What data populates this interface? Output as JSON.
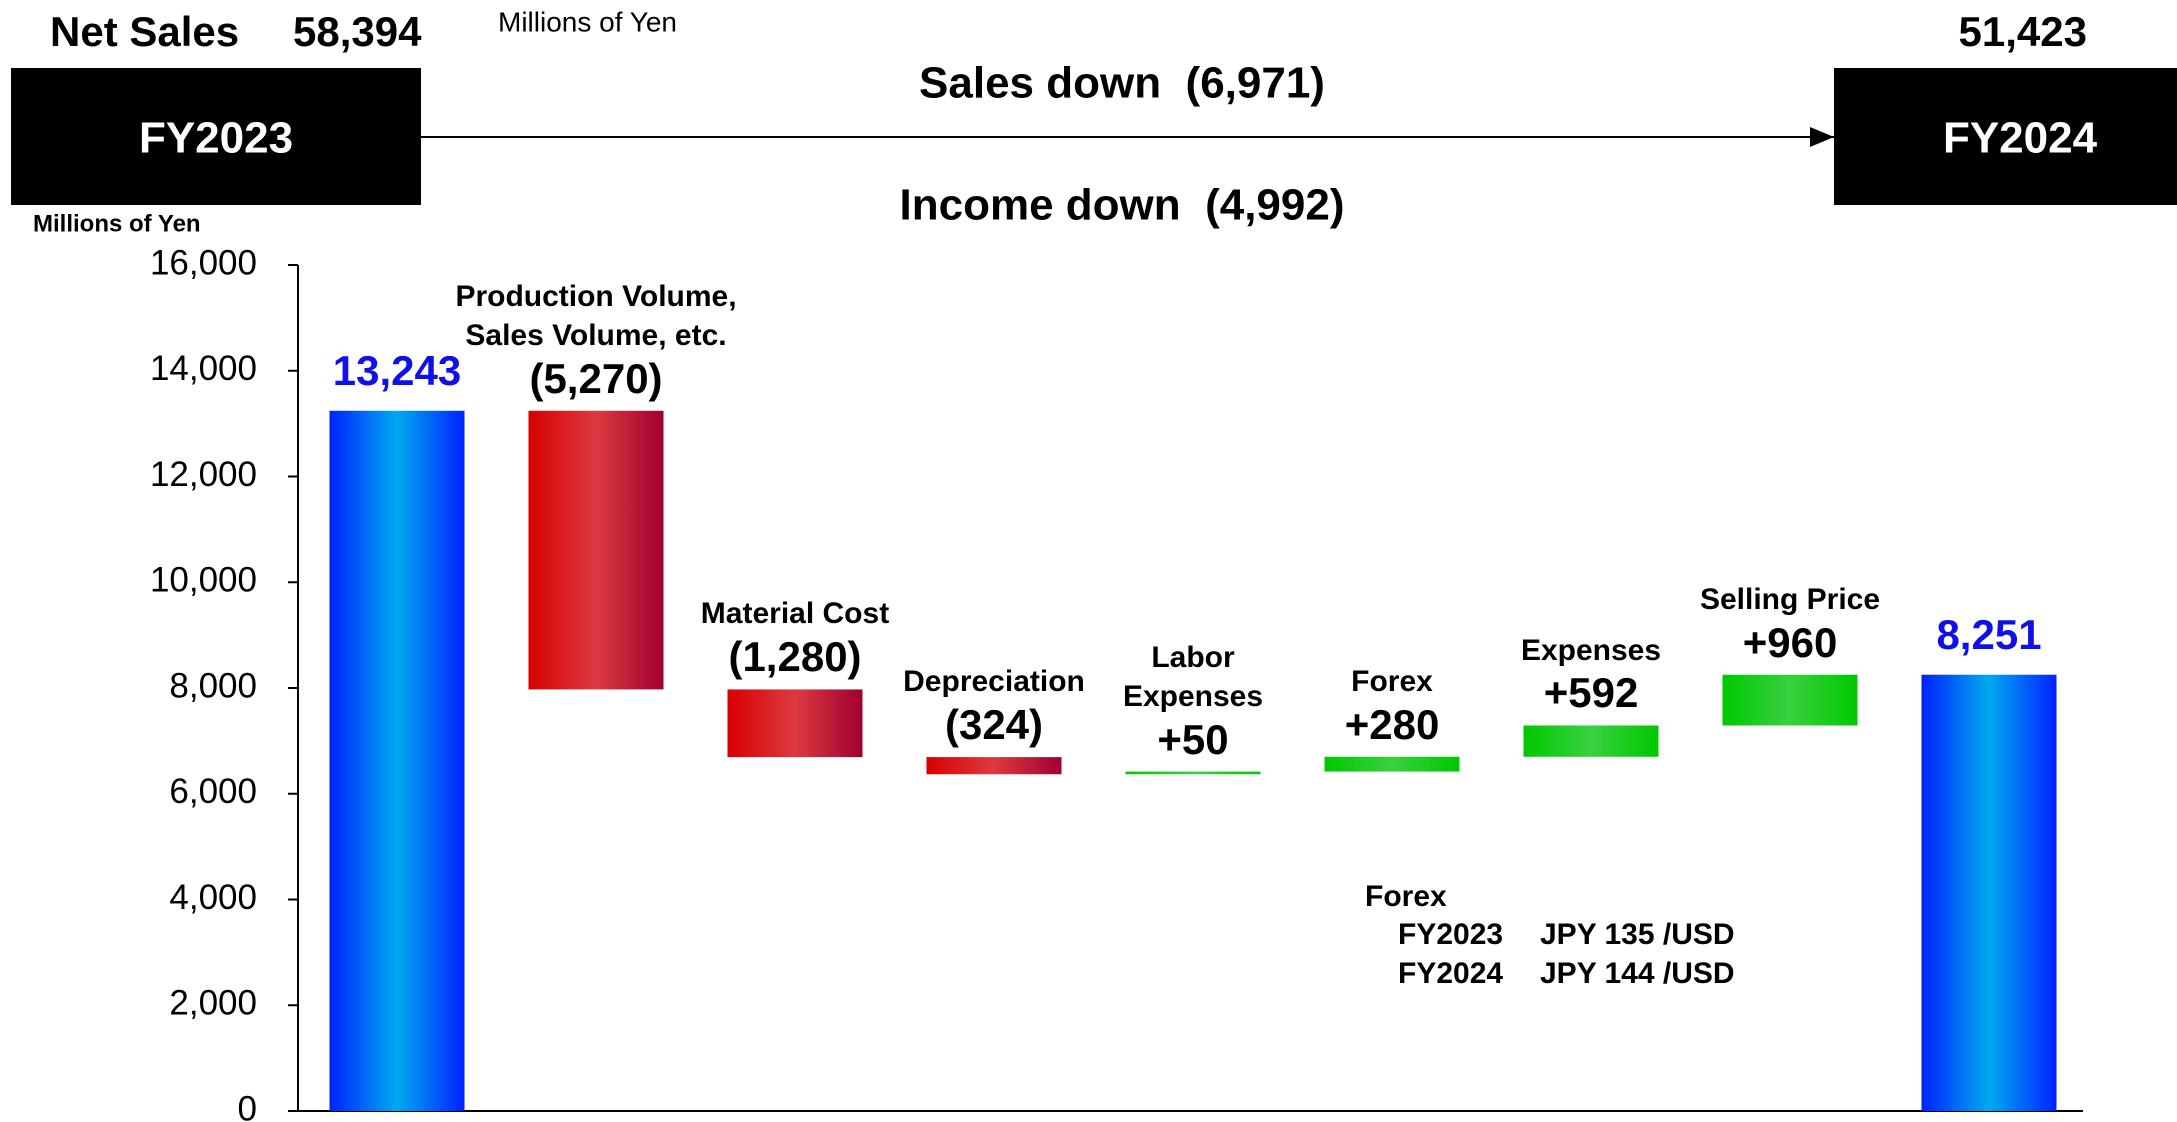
{
  "header": {
    "net_sales_label": "Net Sales",
    "fy2023_sales": "58,394",
    "unit": "Millions of Yen",
    "fy2024_sales": "51,423",
    "sales_change": "Sales down  (6,971)",
    "fy2023": "FY2023",
    "fy2024": "FY2024",
    "income_change": "Income down  (4,992)"
  },
  "chart_data": {
    "type": "waterfall",
    "y_label": "Millions of Yen",
    "categories": [
      null,
      "Production Volume,\nSales Volume, etc.",
      "Material Cost",
      "Depreciation",
      "Labor\nExpenses",
      "Forex",
      "Expenses",
      "Selling Price",
      null
    ],
    "values": [
      13243,
      -5270,
      -1280,
      -324,
      50,
      280,
      592,
      960,
      8251
    ],
    "value_labels": [
      "13,243",
      "(5,270)",
      "(1,280)",
      "(324)",
      "+50",
      "+280",
      "+592",
      "+960",
      "8,251"
    ],
    "measure": [
      "total",
      "relative",
      "relative",
      "relative",
      "relative",
      "relative",
      "relative",
      "relative",
      "total"
    ],
    "colors": {
      "total": "#0022ff",
      "decrease": "#d80000",
      "increase": "#00c800"
    },
    "total_label_color": "#1010e8",
    "ylim": [
      0,
      16000
    ],
    "yticks": [
      {
        "value": 0,
        "label": "0"
      },
      {
        "value": 2000,
        "label": "2,000"
      },
      {
        "value": 4000,
        "label": "4,000"
      },
      {
        "value": 6000,
        "label": "6,000"
      },
      {
        "value": 8000,
        "label": "8,000"
      },
      {
        "value": 10000,
        "label": "10,000"
      },
      {
        "value": 12000,
        "label": "12,000"
      },
      {
        "value": 14000,
        "label": "14,000"
      },
      {
        "value": 16000,
        "label": "16,000"
      }
    ]
  },
  "note": {
    "title": "Forex",
    "rows": [
      [
        "FY2023",
        "JPY 135 /USD"
      ],
      [
        "FY2024",
        "JPY 144 /USD"
      ]
    ]
  }
}
